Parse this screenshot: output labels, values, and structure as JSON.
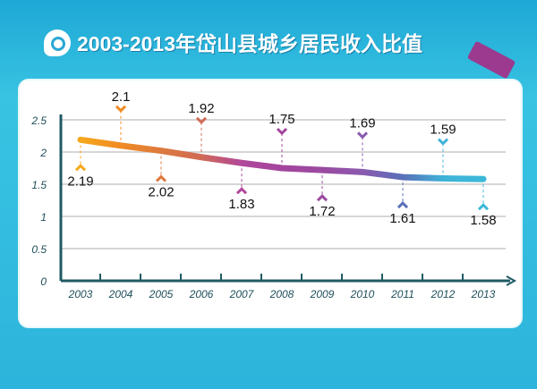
{
  "title": "2003-2013年岱山县城乡居民收入比值",
  "chart_data": {
    "type": "line",
    "title": "2003-2013年岱山县城乡居民收入比值",
    "categories": [
      "2003",
      "2004",
      "2005",
      "2006",
      "2007",
      "2008",
      "2009",
      "2010",
      "2011",
      "2012",
      "2013"
    ],
    "values": [
      2.19,
      2.1,
      2.02,
      1.92,
      1.83,
      1.75,
      1.72,
      1.69,
      1.61,
      1.59,
      1.58
    ],
    "data_labels": [
      "2.19",
      "2.1",
      "2.02",
      "1.92",
      "1.83",
      "1.75",
      "1.72",
      "1.69",
      "1.61",
      "1.59",
      "1.58"
    ],
    "yticks": [
      "0",
      "0.5",
      "1",
      "1.5",
      "2",
      "2.5"
    ],
    "ylim": [
      0,
      2.5
    ],
    "grid": true,
    "colors": [
      "#f6a81c",
      "#f08a22",
      "#dd7a3e",
      "#d06a55",
      "#b0479a",
      "#a4449e",
      "#9b4aa0",
      "#8a5aaf",
      "#5a6fb8",
      "#3fb3d8",
      "#3bb8d8"
    ]
  }
}
